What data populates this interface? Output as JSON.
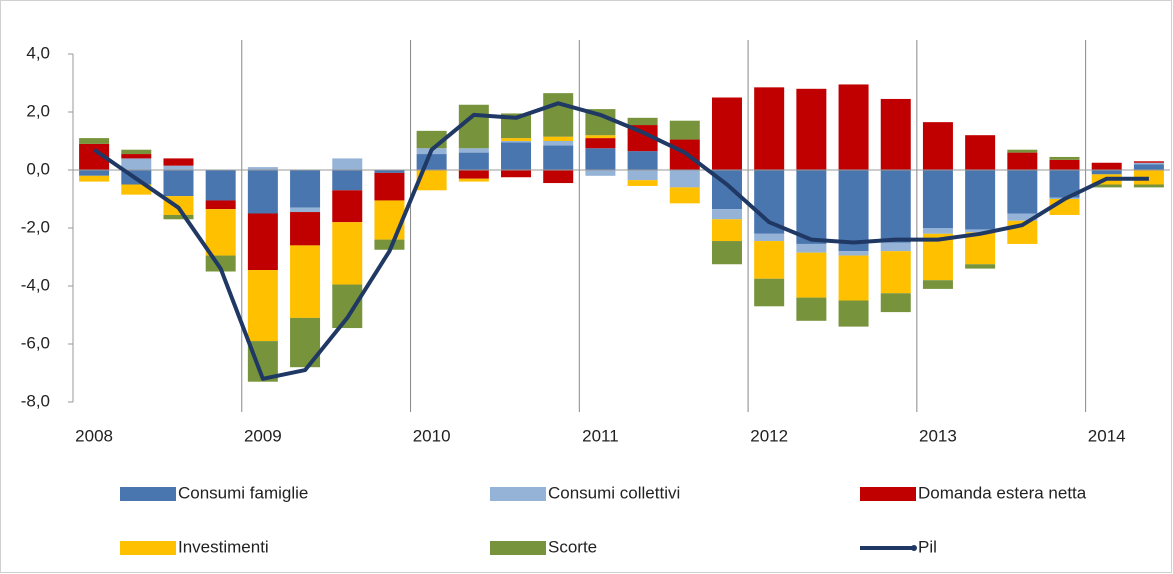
{
  "chart_data": {
    "type": "bar",
    "stacked": true,
    "categories": [
      "2008",
      null,
      null,
      null,
      "2009",
      null,
      null,
      null,
      "2010",
      null,
      null,
      null,
      "2011",
      null,
      null,
      null,
      "2012",
      null,
      null,
      null,
      "2013",
      null,
      null,
      null,
      "2014",
      null
    ],
    "ylim": [
      -8,
      4
    ],
    "yticks": [
      {
        "value": 4,
        "label": "4,0"
      },
      {
        "value": 2,
        "label": "2,0"
      },
      {
        "value": 0,
        "label": "0,0"
      },
      {
        "value": -2,
        "label": "-2,0"
      },
      {
        "value": -4,
        "label": "-4,0"
      },
      {
        "value": -6,
        "label": "-6,0"
      },
      {
        "value": -8,
        "label": "-8,0"
      }
    ],
    "series": [
      {
        "name": "Consumi famiglie",
        "type": "bar",
        "color": "#4a76b0",
        "values": [
          -0.2,
          -0.5,
          -0.9,
          -1.05,
          -1.5,
          -1.3,
          -0.7,
          -0.1,
          0.55,
          0.6,
          0.95,
          0.85,
          0.75,
          0.65,
          0,
          -1.35,
          -2.2,
          -2.55,
          -2.8,
          -2.5,
          -2.0,
          -2.05,
          -1.5,
          -0.95,
          -0.15,
          0.2
        ]
      },
      {
        "name": "Consumi collettivi",
        "type": "bar",
        "color": "#95b3d7",
        "values": [
          0,
          0.4,
          0.15,
          0,
          0.1,
          -0.15,
          0.4,
          0,
          0.2,
          0.15,
          0.05,
          0.15,
          -0.2,
          -0.35,
          -0.6,
          -0.35,
          -0.25,
          -0.3,
          -0.15,
          -0.3,
          -0.2,
          -0.1,
          -0.25,
          -0.05,
          0,
          0.05
        ]
      },
      {
        "name": "Domanda estera netta",
        "type": "bar",
        "color": "#c00000",
        "values": [
          0.9,
          0.15,
          0.25,
          -0.3,
          -1.95,
          -1.15,
          -1.1,
          -0.95,
          0,
          -0.3,
          -0.25,
          -0.45,
          0.35,
          0.9,
          1.05,
          2.5,
          2.85,
          2.8,
          2.95,
          2.45,
          1.65,
          1.2,
          0.6,
          0.35,
          0.25,
          0.05
        ]
      },
      {
        "name": "Investimenti",
        "type": "bar",
        "color": "#ffc000",
        "values": [
          -0.2,
          -0.35,
          -0.65,
          -1.6,
          -2.45,
          -2.5,
          -2.15,
          -1.35,
          -0.7,
          -0.1,
          0.1,
          0.15,
          0.1,
          -0.2,
          -0.55,
          -0.75,
          -1.3,
          -1.55,
          -1.55,
          -1.45,
          -1.6,
          -1.1,
          -0.8,
          -0.55,
          -0.35,
          -0.5
        ]
      },
      {
        "name": "Scorte",
        "type": "bar",
        "color": "#77933c",
        "values": [
          0.2,
          0.15,
          -0.15,
          -0.55,
          -1.4,
          -1.7,
          -1.5,
          -0.35,
          0.6,
          1.5,
          0.85,
          1.5,
          0.9,
          0.25,
          0.65,
          -0.8,
          -0.95,
          -0.8,
          -0.9,
          -0.65,
          -0.3,
          -0.15,
          0.1,
          0.1,
          -0.1,
          -0.1
        ]
      },
      {
        "name": "Pil",
        "type": "line",
        "color": "#1f3864",
        "values": [
          0.7,
          -0.3,
          -1.3,
          -3.4,
          -7.2,
          -6.9,
          -5.1,
          -2.8,
          0.7,
          1.9,
          1.8,
          2.3,
          1.9,
          1.3,
          0.6,
          -0.5,
          -1.8,
          -2.4,
          -2.5,
          -2.4,
          -2.4,
          -2.2,
          -1.9,
          -1.0,
          -0.3,
          -0.3
        ]
      }
    ]
  }
}
